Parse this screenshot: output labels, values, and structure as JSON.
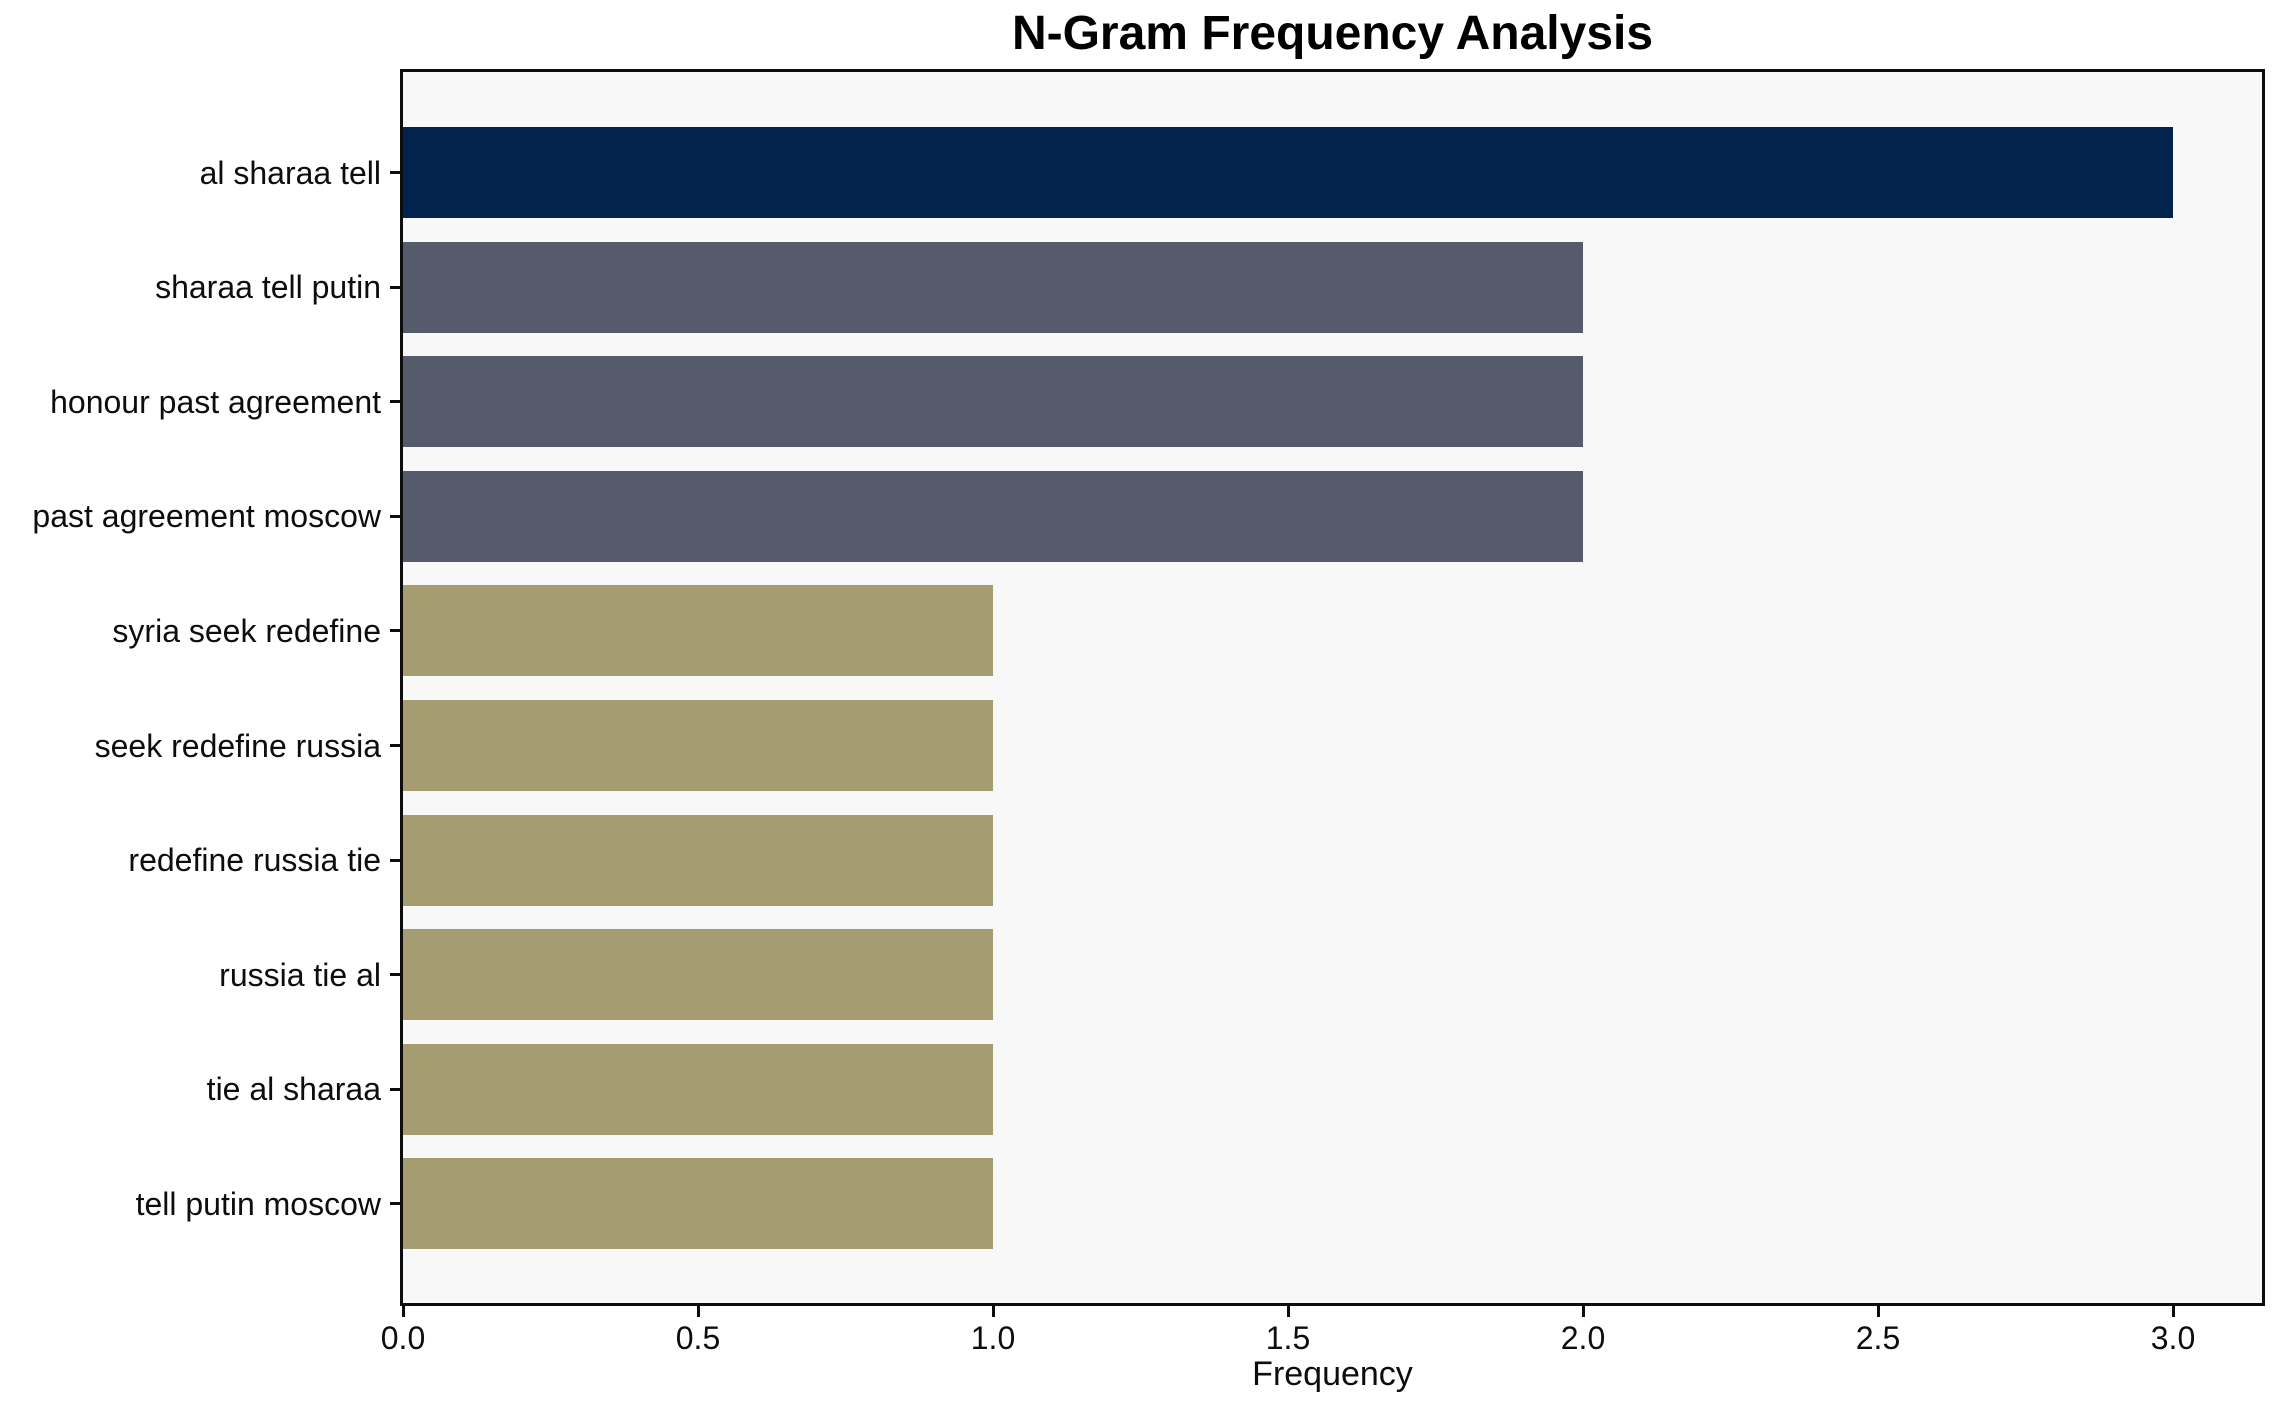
{
  "chart_data": {
    "type": "bar",
    "orientation": "horizontal",
    "title": "N-Gram Frequency Analysis",
    "xlabel": "Frequency",
    "ylabel": "",
    "categories": [
      "al sharaa tell",
      "sharaa tell putin",
      "honour past agreement",
      "past agreement moscow",
      "syria seek redefine",
      "seek redefine russia",
      "redefine russia tie",
      "russia tie al",
      "tie al sharaa",
      "tell putin moscow"
    ],
    "values": [
      3,
      2,
      2,
      2,
      1,
      1,
      1,
      1,
      1,
      1
    ],
    "bar_colors": [
      "#02234C",
      "#565B6B",
      "#565B6B",
      "#565B6B",
      "#A59C72",
      "#A59C72",
      "#A59C72",
      "#A59C72",
      "#A59C72",
      "#A59C72"
    ],
    "x_ticks": [
      {
        "label": "0.0",
        "value": 0.0
      },
      {
        "label": "0.5",
        "value": 0.5
      },
      {
        "label": "1.0",
        "value": 1.0
      },
      {
        "label": "1.5",
        "value": 1.5
      },
      {
        "label": "2.0",
        "value": 2.0
      },
      {
        "label": "2.5",
        "value": 2.5
      },
      {
        "label": "3.0",
        "value": 3.0
      }
    ],
    "xlim": [
      0.0,
      3.15
    ],
    "grid": false,
    "legend": false,
    "colors": {
      "plot_background": "#F8F8F8",
      "figure_background": "#FFFFFF",
      "spine": "#0D0D0D",
      "text": "#0D0D0D"
    }
  }
}
